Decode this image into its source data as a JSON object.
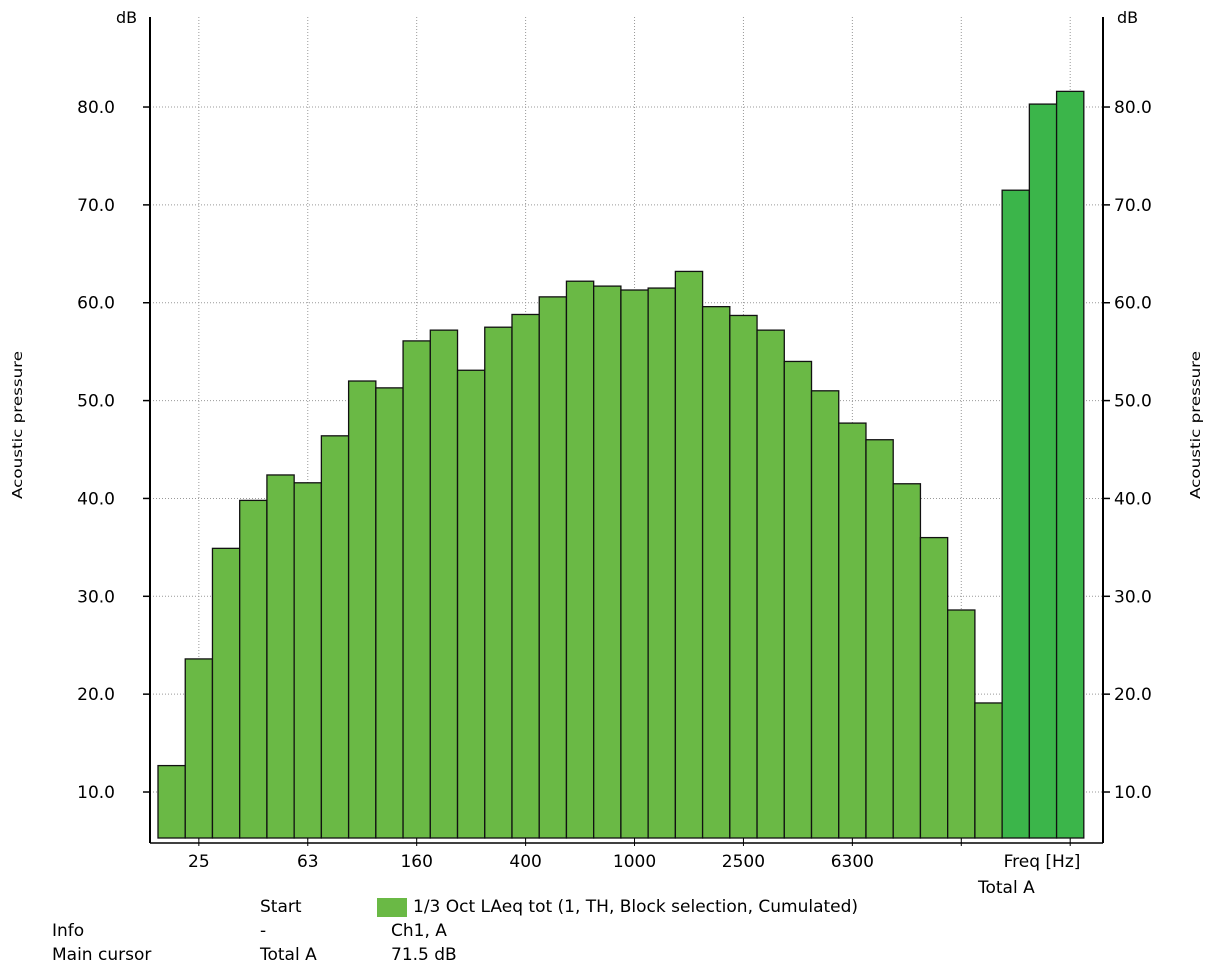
{
  "chart_data": {
    "type": "bar",
    "ylabel_left": "Acoustic pressure",
    "ylabel_right": "Acoustic pressure",
    "yunit_left": "dB",
    "yunit_right": "dB",
    "xlabel": "Freq [Hz]",
    "ylim": [
      5.3,
      89.2
    ],
    "yticks": [
      "10.0",
      "20.0",
      "30.0",
      "40.0",
      "50.0",
      "60.0",
      "70.0",
      "80.0"
    ],
    "xtick_labels": [
      "25",
      "63",
      "160",
      "400",
      "1000",
      "2500",
      "6300"
    ],
    "total_label": "Total A",
    "grid": true,
    "bar_color": "#6ab945",
    "total_bar_color": "#3bb54a",
    "categories": [
      "20",
      "25",
      "31.5",
      "40",
      "50",
      "63",
      "80",
      "100",
      "125",
      "160",
      "200",
      "250",
      "315",
      "400",
      "500",
      "630",
      "800",
      "1000",
      "1250",
      "1600",
      "2000",
      "2500",
      "3150",
      "4000",
      "5000",
      "6300",
      "8000",
      "10000",
      "12500",
      "16000",
      "20000"
    ],
    "values": [
      12.7,
      23.6,
      34.9,
      39.8,
      42.4,
      41.6,
      46.4,
      52.0,
      51.3,
      56.1,
      57.2,
      53.1,
      57.5,
      58.8,
      60.6,
      62.2,
      61.7,
      61.3,
      61.5,
      63.2,
      59.6,
      58.7,
      57.2,
      54.0,
      51.0,
      47.7,
      46.0,
      41.5,
      36.0,
      28.6,
      19.1
    ],
    "total_values": [
      71.5,
      80.3,
      81.6
    ],
    "legend": "1/3 Oct LAeq tot (1, TH, Block selection, Cumulated)"
  },
  "info_panel": {
    "start_label": "Start",
    "info_label": "Info",
    "info_value": "-",
    "channel": "Ch1, A",
    "main_cursor_label": "Main cursor",
    "cursor_position": "Total A",
    "cursor_value": "71.5 dB"
  }
}
